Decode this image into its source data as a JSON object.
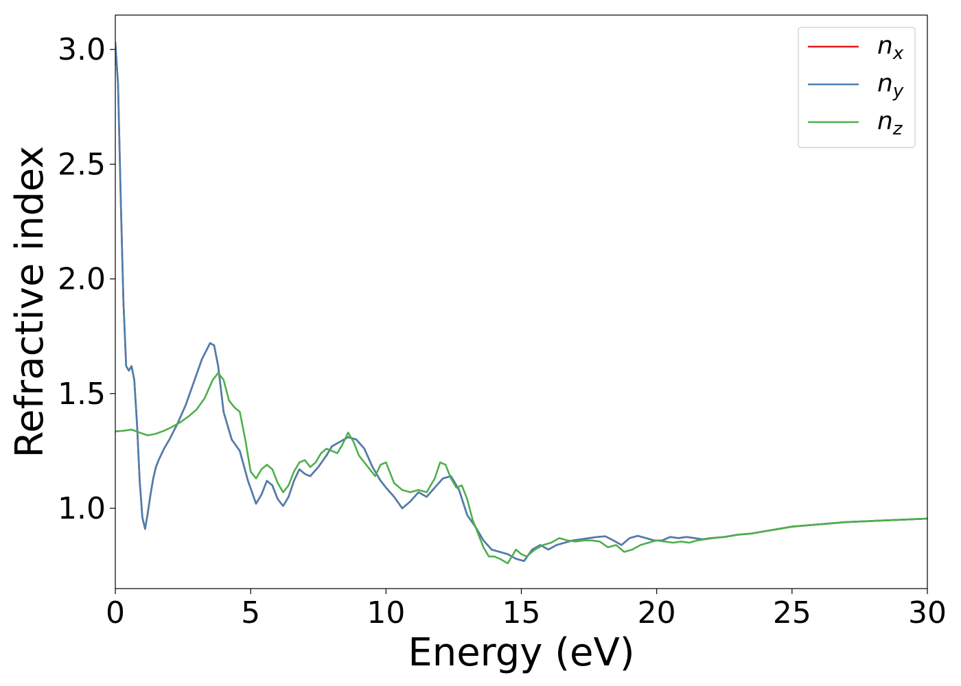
{
  "chart_data": {
    "type": "line",
    "title": "",
    "xlabel": "Energy (eV)",
    "ylabel": "Refractive index",
    "xlim": [
      0,
      30
    ],
    "ylim": [
      0.65,
      3.15
    ],
    "xticks": [
      0,
      5,
      10,
      15,
      20,
      25,
      30
    ],
    "xtick_labels": [
      "0",
      "5",
      "10",
      "15",
      "20",
      "25",
      "30"
    ],
    "yticks": [
      1.0,
      1.5,
      2.0,
      2.5,
      3.0
    ],
    "ytick_labels": [
      "1.0",
      "1.5",
      "2.0",
      "2.5",
      "3.0"
    ],
    "grid": false,
    "legend_position": "top-right",
    "series": [
      {
        "name": "n_x",
        "label_base": "n",
        "label_sub": "x",
        "color": "#e41a1c",
        "x": [
          0.0,
          0.1,
          0.2,
          0.3,
          0.4,
          0.5,
          0.6,
          0.7,
          0.8,
          0.9,
          1.0,
          1.1,
          1.2,
          1.3,
          1.4,
          1.5,
          1.6,
          1.8,
          2.0,
          2.3,
          2.6,
          2.9,
          3.2,
          3.5,
          3.65,
          3.8,
          4.0,
          4.3,
          4.6,
          4.9,
          5.2,
          5.4,
          5.6,
          5.8,
          6.0,
          6.2,
          6.4,
          6.6,
          6.8,
          7.0,
          7.2,
          7.5,
          7.8,
          8.0,
          8.3,
          8.6,
          8.9,
          9.2,
          9.5,
          9.8,
          10.0,
          10.3,
          10.6,
          10.9,
          11.2,
          11.5,
          11.8,
          12.1,
          12.4,
          12.7,
          13.0,
          13.3,
          13.6,
          13.9,
          14.2,
          14.5,
          14.8,
          15.1,
          15.4,
          15.7,
          16.0,
          16.3,
          16.6,
          16.9,
          17.2,
          17.5,
          17.8,
          18.1,
          18.4,
          18.7,
          19.0,
          19.3,
          19.6,
          19.9,
          20.2,
          20.5,
          20.8,
          21.1,
          21.4,
          21.7,
          22.0,
          22.5,
          23.0,
          23.5,
          24.0,
          24.5,
          25.0,
          26.0,
          27.0,
          28.0,
          29.0,
          30.0
        ],
        "y": [
          3.03,
          2.85,
          2.35,
          1.9,
          1.62,
          1.6,
          1.62,
          1.56,
          1.37,
          1.12,
          0.96,
          0.91,
          0.98,
          1.06,
          1.13,
          1.18,
          1.21,
          1.26,
          1.3,
          1.37,
          1.45,
          1.55,
          1.65,
          1.72,
          1.71,
          1.62,
          1.42,
          1.3,
          1.25,
          1.12,
          1.02,
          1.06,
          1.12,
          1.1,
          1.04,
          1.01,
          1.05,
          1.12,
          1.17,
          1.15,
          1.14,
          1.18,
          1.23,
          1.27,
          1.29,
          1.31,
          1.3,
          1.26,
          1.18,
          1.12,
          1.09,
          1.05,
          1.0,
          1.03,
          1.07,
          1.05,
          1.09,
          1.13,
          1.14,
          1.08,
          0.97,
          0.92,
          0.86,
          0.82,
          0.81,
          0.8,
          0.78,
          0.77,
          0.82,
          0.84,
          0.82,
          0.84,
          0.85,
          0.86,
          0.865,
          0.87,
          0.875,
          0.878,
          0.86,
          0.84,
          0.87,
          0.88,
          0.87,
          0.86,
          0.86,
          0.875,
          0.87,
          0.875,
          0.87,
          0.865,
          0.87,
          0.875,
          0.885,
          0.89,
          0.9,
          0.91,
          0.92,
          0.93,
          0.94,
          0.945,
          0.95,
          0.955
        ]
      },
      {
        "name": "n_y",
        "label_base": "n",
        "label_sub": "y",
        "color": "#4a7fb0",
        "x": [
          0.0,
          0.1,
          0.2,
          0.3,
          0.4,
          0.5,
          0.6,
          0.7,
          0.8,
          0.9,
          1.0,
          1.1,
          1.2,
          1.3,
          1.4,
          1.5,
          1.6,
          1.8,
          2.0,
          2.3,
          2.6,
          2.9,
          3.2,
          3.5,
          3.65,
          3.8,
          4.0,
          4.3,
          4.6,
          4.9,
          5.2,
          5.4,
          5.6,
          5.8,
          6.0,
          6.2,
          6.4,
          6.6,
          6.8,
          7.0,
          7.2,
          7.5,
          7.8,
          8.0,
          8.3,
          8.6,
          8.9,
          9.2,
          9.5,
          9.8,
          10.0,
          10.3,
          10.6,
          10.9,
          11.2,
          11.5,
          11.8,
          12.1,
          12.4,
          12.7,
          13.0,
          13.3,
          13.6,
          13.9,
          14.2,
          14.5,
          14.8,
          15.1,
          15.4,
          15.7,
          16.0,
          16.3,
          16.6,
          16.9,
          17.2,
          17.5,
          17.8,
          18.1,
          18.4,
          18.7,
          19.0,
          19.3,
          19.6,
          19.9,
          20.2,
          20.5,
          20.8,
          21.1,
          21.4,
          21.7,
          22.0,
          22.5,
          23.0,
          23.5,
          24.0,
          24.5,
          25.0,
          26.0,
          27.0,
          28.0,
          29.0,
          30.0
        ],
        "y": [
          3.03,
          2.85,
          2.35,
          1.9,
          1.62,
          1.6,
          1.62,
          1.56,
          1.37,
          1.12,
          0.96,
          0.91,
          0.98,
          1.06,
          1.13,
          1.18,
          1.21,
          1.26,
          1.3,
          1.37,
          1.45,
          1.55,
          1.65,
          1.72,
          1.71,
          1.62,
          1.42,
          1.3,
          1.25,
          1.12,
          1.02,
          1.06,
          1.12,
          1.1,
          1.04,
          1.01,
          1.05,
          1.12,
          1.17,
          1.15,
          1.14,
          1.18,
          1.23,
          1.27,
          1.29,
          1.31,
          1.3,
          1.26,
          1.18,
          1.12,
          1.09,
          1.05,
          1.0,
          1.03,
          1.07,
          1.05,
          1.09,
          1.13,
          1.14,
          1.08,
          0.97,
          0.92,
          0.86,
          0.82,
          0.81,
          0.8,
          0.78,
          0.77,
          0.82,
          0.84,
          0.82,
          0.84,
          0.85,
          0.86,
          0.865,
          0.87,
          0.875,
          0.878,
          0.86,
          0.84,
          0.87,
          0.88,
          0.87,
          0.86,
          0.86,
          0.875,
          0.87,
          0.875,
          0.87,
          0.865,
          0.87,
          0.875,
          0.885,
          0.89,
          0.9,
          0.91,
          0.92,
          0.93,
          0.94,
          0.945,
          0.95,
          0.955
        ]
      },
      {
        "name": "n_z",
        "label_base": "n",
        "label_sub": "z",
        "color": "#4daf4a",
        "x": [
          0.0,
          0.3,
          0.6,
          0.9,
          1.2,
          1.5,
          1.8,
          2.1,
          2.4,
          2.7,
          3.0,
          3.3,
          3.6,
          3.8,
          4.0,
          4.2,
          4.4,
          4.6,
          4.8,
          5.0,
          5.2,
          5.4,
          5.6,
          5.8,
          6.0,
          6.2,
          6.4,
          6.6,
          6.8,
          7.0,
          7.2,
          7.4,
          7.6,
          7.8,
          8.0,
          8.2,
          8.4,
          8.6,
          8.8,
          9.0,
          9.2,
          9.4,
          9.6,
          9.8,
          10.0,
          10.3,
          10.6,
          10.9,
          11.2,
          11.5,
          11.8,
          12.0,
          12.2,
          12.4,
          12.6,
          12.8,
          13.0,
          13.2,
          13.4,
          13.6,
          13.8,
          14.0,
          14.2,
          14.5,
          14.8,
          15.0,
          15.2,
          15.5,
          15.8,
          16.1,
          16.4,
          16.7,
          17.0,
          17.3,
          17.6,
          17.9,
          18.2,
          18.5,
          18.8,
          19.1,
          19.4,
          19.7,
          20.0,
          20.3,
          20.6,
          20.9,
          21.2,
          21.5,
          21.8,
          22.1,
          22.5,
          23.0,
          23.5,
          24.0,
          24.5,
          25.0,
          26.0,
          27.0,
          28.0,
          29.0,
          30.0
        ],
        "y": [
          1.335,
          1.338,
          1.343,
          1.33,
          1.318,
          1.325,
          1.338,
          1.355,
          1.375,
          1.4,
          1.43,
          1.48,
          1.56,
          1.59,
          1.56,
          1.47,
          1.44,
          1.42,
          1.3,
          1.16,
          1.13,
          1.17,
          1.19,
          1.17,
          1.11,
          1.07,
          1.1,
          1.16,
          1.2,
          1.21,
          1.18,
          1.2,
          1.24,
          1.26,
          1.25,
          1.24,
          1.28,
          1.33,
          1.29,
          1.23,
          1.2,
          1.17,
          1.14,
          1.19,
          1.2,
          1.11,
          1.08,
          1.07,
          1.08,
          1.07,
          1.13,
          1.2,
          1.19,
          1.13,
          1.09,
          1.1,
          1.04,
          0.95,
          0.89,
          0.83,
          0.79,
          0.79,
          0.78,
          0.76,
          0.82,
          0.8,
          0.79,
          0.82,
          0.84,
          0.85,
          0.87,
          0.86,
          0.855,
          0.86,
          0.86,
          0.855,
          0.83,
          0.84,
          0.81,
          0.82,
          0.84,
          0.85,
          0.86,
          0.855,
          0.85,
          0.855,
          0.85,
          0.86,
          0.865,
          0.87,
          0.875,
          0.885,
          0.89,
          0.9,
          0.91,
          0.92,
          0.93,
          0.94,
          0.945,
          0.95,
          0.955
        ]
      }
    ]
  }
}
